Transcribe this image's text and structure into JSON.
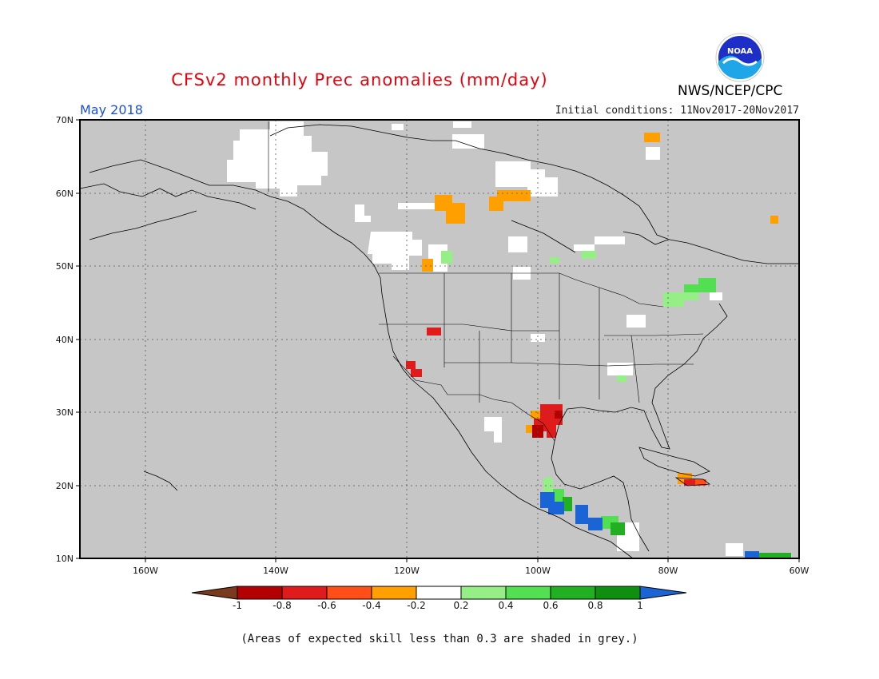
{
  "header": {
    "title": "CFSv2 monthly Prec anomalies (mm/day)",
    "month": "May 2018",
    "initial_conditions": "Initial conditions: 11Nov2017-20Nov2017",
    "agency": "NWS/NCEP/CPC",
    "logo_text": "NOAA"
  },
  "map": {
    "projection": "lat-lon",
    "extent": {
      "lon_min": -170,
      "lon_max": -60,
      "lat_min": 10,
      "lat_max": 70
    },
    "background_color": "#c6c6c6",
    "lat_labels": [
      "70N",
      "60N",
      "50N",
      "40N",
      "30N",
      "20N",
      "10N"
    ],
    "lon_labels": [
      "160W",
      "140W",
      "120W",
      "100W",
      "80W",
      "60W"
    ],
    "anomaly_patches": [
      {
        "region": "Alaska north slope",
        "category": "-0.2 to 0.2"
      },
      {
        "region": "Yukon / NW Canada",
        "category": "-0.2 to 0.2"
      },
      {
        "region": "British Columbia",
        "category": "-0.2 to 0.2"
      },
      {
        "region": "Northwest Territories",
        "category": "-0.4 to -0.2"
      },
      {
        "region": "Nunavut / Hudson Bay west",
        "category": "-0.4 to -0.2"
      },
      {
        "region": "Southern Alberta",
        "category": "-0.4 to -0.2"
      },
      {
        "region": "Nevada",
        "category": "-0.8 to -0.6"
      },
      {
        "region": "Southern California",
        "category": "-0.8 to -0.6"
      },
      {
        "region": "South Texas / NE Mexico",
        "category": "-0.8 to -0.6"
      },
      {
        "region": "Hispaniola",
        "category": "-0.4 to -0.2"
      },
      {
        "region": "Great Lakes / Quebec",
        "category": "0.2 to 0.4"
      },
      {
        "region": "Southern Mexico Pacific coast",
        "category": "0.8 to 1"
      },
      {
        "region": "Central America",
        "category": "0.8 to 1"
      }
    ]
  },
  "colorbar": {
    "labels": [
      "-1",
      "-0.8",
      "-0.6",
      "-0.4",
      "-0.2",
      "0.2",
      "0.4",
      "0.6",
      "0.8",
      "1"
    ],
    "colors": [
      "#7a3a1e",
      "#b30000",
      "#e01b1b",
      "#ff4e18",
      "#ffa000",
      "#ffffff",
      "#96ee86",
      "#52e052",
      "#21b021",
      "#0f8f0f",
      "#1a64d6"
    ]
  },
  "footnote": "(Areas of expected skill less than 0.3 are shaded in grey.)"
}
